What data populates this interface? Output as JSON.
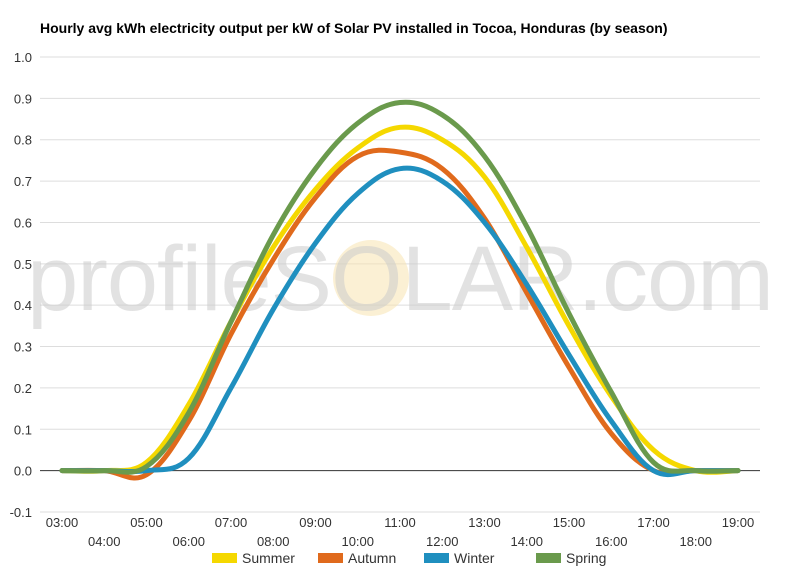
{
  "chart_data": {
    "type": "line",
    "title": "Hourly avg kWh electricity output per kW of Solar PV installed in Tocoa, Honduras (by season)",
    "watermark": "profileSOLAR.com",
    "xlabel": "",
    "ylabel": "",
    "ylim": [
      -0.1,
      1.0
    ],
    "yticks": [
      "-0.1",
      "0.0",
      "0.1",
      "0.2",
      "0.3",
      "0.4",
      "0.5",
      "0.6",
      "0.7",
      "0.8",
      "0.9",
      "1.0"
    ],
    "x_tick_labels": [
      "03:00",
      "04:00",
      "05:00",
      "06:00",
      "07:00",
      "08:00",
      "09:00",
      "10:00",
      "11:00",
      "12:00",
      "13:00",
      "14:00",
      "15:00",
      "16:00",
      "17:00",
      "18:00",
      "19:00"
    ],
    "x": [
      3,
      4,
      5,
      6,
      7,
      8,
      9,
      10,
      11,
      12,
      13,
      14,
      15,
      16,
      17,
      18,
      19
    ],
    "grid": true,
    "legend_position": "bottom",
    "series": [
      {
        "name": "Summer",
        "color": "#f5d800",
        "values": [
          0.0,
          0.0,
          0.02,
          0.16,
          0.36,
          0.54,
          0.68,
          0.78,
          0.83,
          0.8,
          0.71,
          0.54,
          0.35,
          0.18,
          0.05,
          0.0,
          0.0
        ]
      },
      {
        "name": "Autumn",
        "color": "#e06a1c",
        "values": [
          0.0,
          0.0,
          -0.01,
          0.12,
          0.33,
          0.51,
          0.66,
          0.76,
          0.77,
          0.73,
          0.61,
          0.43,
          0.25,
          0.09,
          0.0,
          0.0,
          0.0
        ]
      },
      {
        "name": "Winter",
        "color": "#1f8fbf",
        "values": [
          0.0,
          0.0,
          0.0,
          0.03,
          0.2,
          0.39,
          0.55,
          0.67,
          0.73,
          0.7,
          0.6,
          0.45,
          0.28,
          0.12,
          0.0,
          0.0,
          0.0
        ]
      },
      {
        "name": "Spring",
        "color": "#6a9a4c",
        "values": [
          0.0,
          0.0,
          0.01,
          0.14,
          0.36,
          0.57,
          0.73,
          0.84,
          0.89,
          0.86,
          0.76,
          0.59,
          0.38,
          0.19,
          0.02,
          0.0,
          0.0
        ]
      }
    ]
  }
}
